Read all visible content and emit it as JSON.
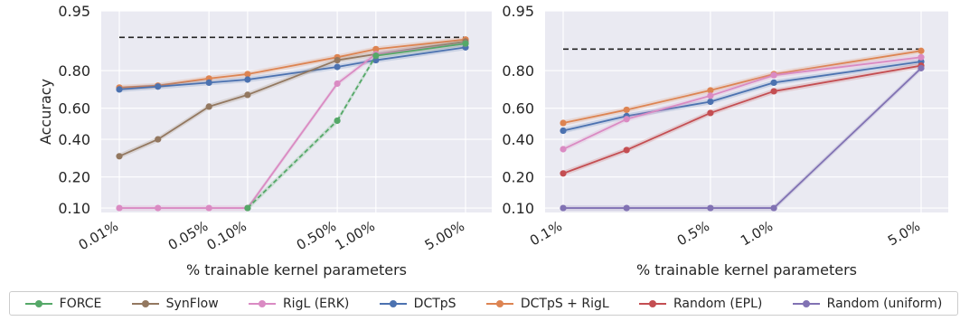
{
  "chart_data": [
    {
      "type": "line",
      "ylabel": "Accuracy",
      "xlabel": "% trainable kernel parameters",
      "y_scale": "logit",
      "ylim": [
        0.09,
        0.95
      ],
      "yticks": [
        0.1,
        0.2,
        0.4,
        0.6,
        0.8,
        0.95
      ],
      "yticklabels": [
        "0.10",
        "0.20",
        "0.40",
        "0.60",
        "0.80",
        "0.95"
      ],
      "x_scale": "log",
      "xticks": [
        0.01,
        0.05,
        0.1,
        0.5,
        1.0,
        5.0
      ],
      "xticklabels": [
        "0.01%",
        "0.05%",
        "0.10%",
        "0.50%",
        "1.00%",
        "5.00%"
      ],
      "grid": true,
      "reference_line": 0.905,
      "series": [
        {
          "name": "DCTpS + RigL",
          "color": "#dd8452",
          "x": [
            0.01,
            0.02,
            0.05,
            0.1,
            0.5,
            1.0,
            5.0
          ],
          "y": [
            0.72,
            0.73,
            0.765,
            0.785,
            0.85,
            0.875,
            0.9
          ]
        },
        {
          "name": "DCTpS",
          "color": "#4c72b0",
          "x": [
            0.01,
            0.02,
            0.05,
            0.1,
            0.5,
            1.0,
            5.0
          ],
          "y": [
            0.71,
            0.725,
            0.745,
            0.76,
            0.815,
            0.84,
            0.88
          ]
        },
        {
          "name": "SynFlow",
          "color": "#937860",
          "x": [
            0.01,
            0.02,
            0.05,
            0.1,
            0.5,
            1.0,
            5.0
          ],
          "y": [
            0.3,
            0.4,
            0.61,
            0.68,
            0.84,
            0.86,
            0.895
          ]
        },
        {
          "name": "RigL (ERK)",
          "color": "#da8bc3",
          "x": [
            0.01,
            0.02,
            0.05,
            0.1,
            0.5,
            1.0,
            5.0
          ],
          "y": [
            0.1,
            0.1,
            0.1,
            0.1,
            0.74,
            0.86,
            0.89
          ]
        },
        {
          "name": "FORCE",
          "color": "#55a868",
          "x": [
            0.1,
            0.5,
            1.0,
            5.0
          ],
          "y": [
            0.1,
            0.52,
            0.855,
            0.89
          ],
          "dashed_until_index": 2
        }
      ]
    },
    {
      "type": "line",
      "ylabel": "",
      "xlabel": "% trainable kernel parameters",
      "y_scale": "logit",
      "ylim": [
        0.09,
        0.95
      ],
      "yticks": [
        0.1,
        0.2,
        0.4,
        0.6,
        0.8,
        0.95
      ],
      "yticklabels": [
        "0.10",
        "0.20",
        "0.40",
        "0.60",
        "0.80",
        "0.95"
      ],
      "x_scale": "log",
      "xticks": [
        0.1,
        0.5,
        1.0,
        5.0
      ],
      "xticklabels": [
        "0.1%",
        "0.5%",
        "1.0%",
        "5.0%"
      ],
      "grid": true,
      "reference_line": 0.875,
      "series": [
        {
          "name": "DCTpS + RigL",
          "color": "#dd8452",
          "x": [
            0.1,
            0.2,
            0.5,
            1.0,
            5.0
          ],
          "y": [
            0.505,
            0.59,
            0.705,
            0.785,
            0.87
          ]
        },
        {
          "name": "DCTpS",
          "color": "#4c72b0",
          "x": [
            0.1,
            0.2,
            0.5,
            1.0,
            5.0
          ],
          "y": [
            0.455,
            0.55,
            0.64,
            0.745,
            0.835
          ]
        },
        {
          "name": "RigL (ERK)",
          "color": "#da8bc3",
          "x": [
            0.1,
            0.2,
            0.5,
            1.0,
            5.0
          ],
          "y": [
            0.34,
            0.53,
            0.675,
            0.78,
            0.85
          ]
        },
        {
          "name": "Random (EPL)",
          "color": "#c44e52",
          "x": [
            0.1,
            0.2,
            0.5,
            1.0,
            5.0
          ],
          "y": [
            0.215,
            0.335,
            0.57,
            0.7,
            0.82
          ]
        },
        {
          "name": "Random (uniform)",
          "color": "#8172b3",
          "x": [
            0.1,
            0.2,
            0.5,
            1.0,
            5.0
          ],
          "y": [
            0.1,
            0.1,
            0.1,
            0.1,
            0.81
          ]
        }
      ]
    }
  ],
  "legend": [
    {
      "label": "FORCE",
      "color": "#55a868"
    },
    {
      "label": "SynFlow",
      "color": "#937860"
    },
    {
      "label": "RigL (ERK)",
      "color": "#da8bc3"
    },
    {
      "label": "DCTpS",
      "color": "#4c72b0"
    },
    {
      "label": "DCTpS + RigL",
      "color": "#dd8452"
    },
    {
      "label": "Random (EPL)",
      "color": "#c44e52"
    },
    {
      "label": "Random (uniform)",
      "color": "#8172b3"
    }
  ]
}
